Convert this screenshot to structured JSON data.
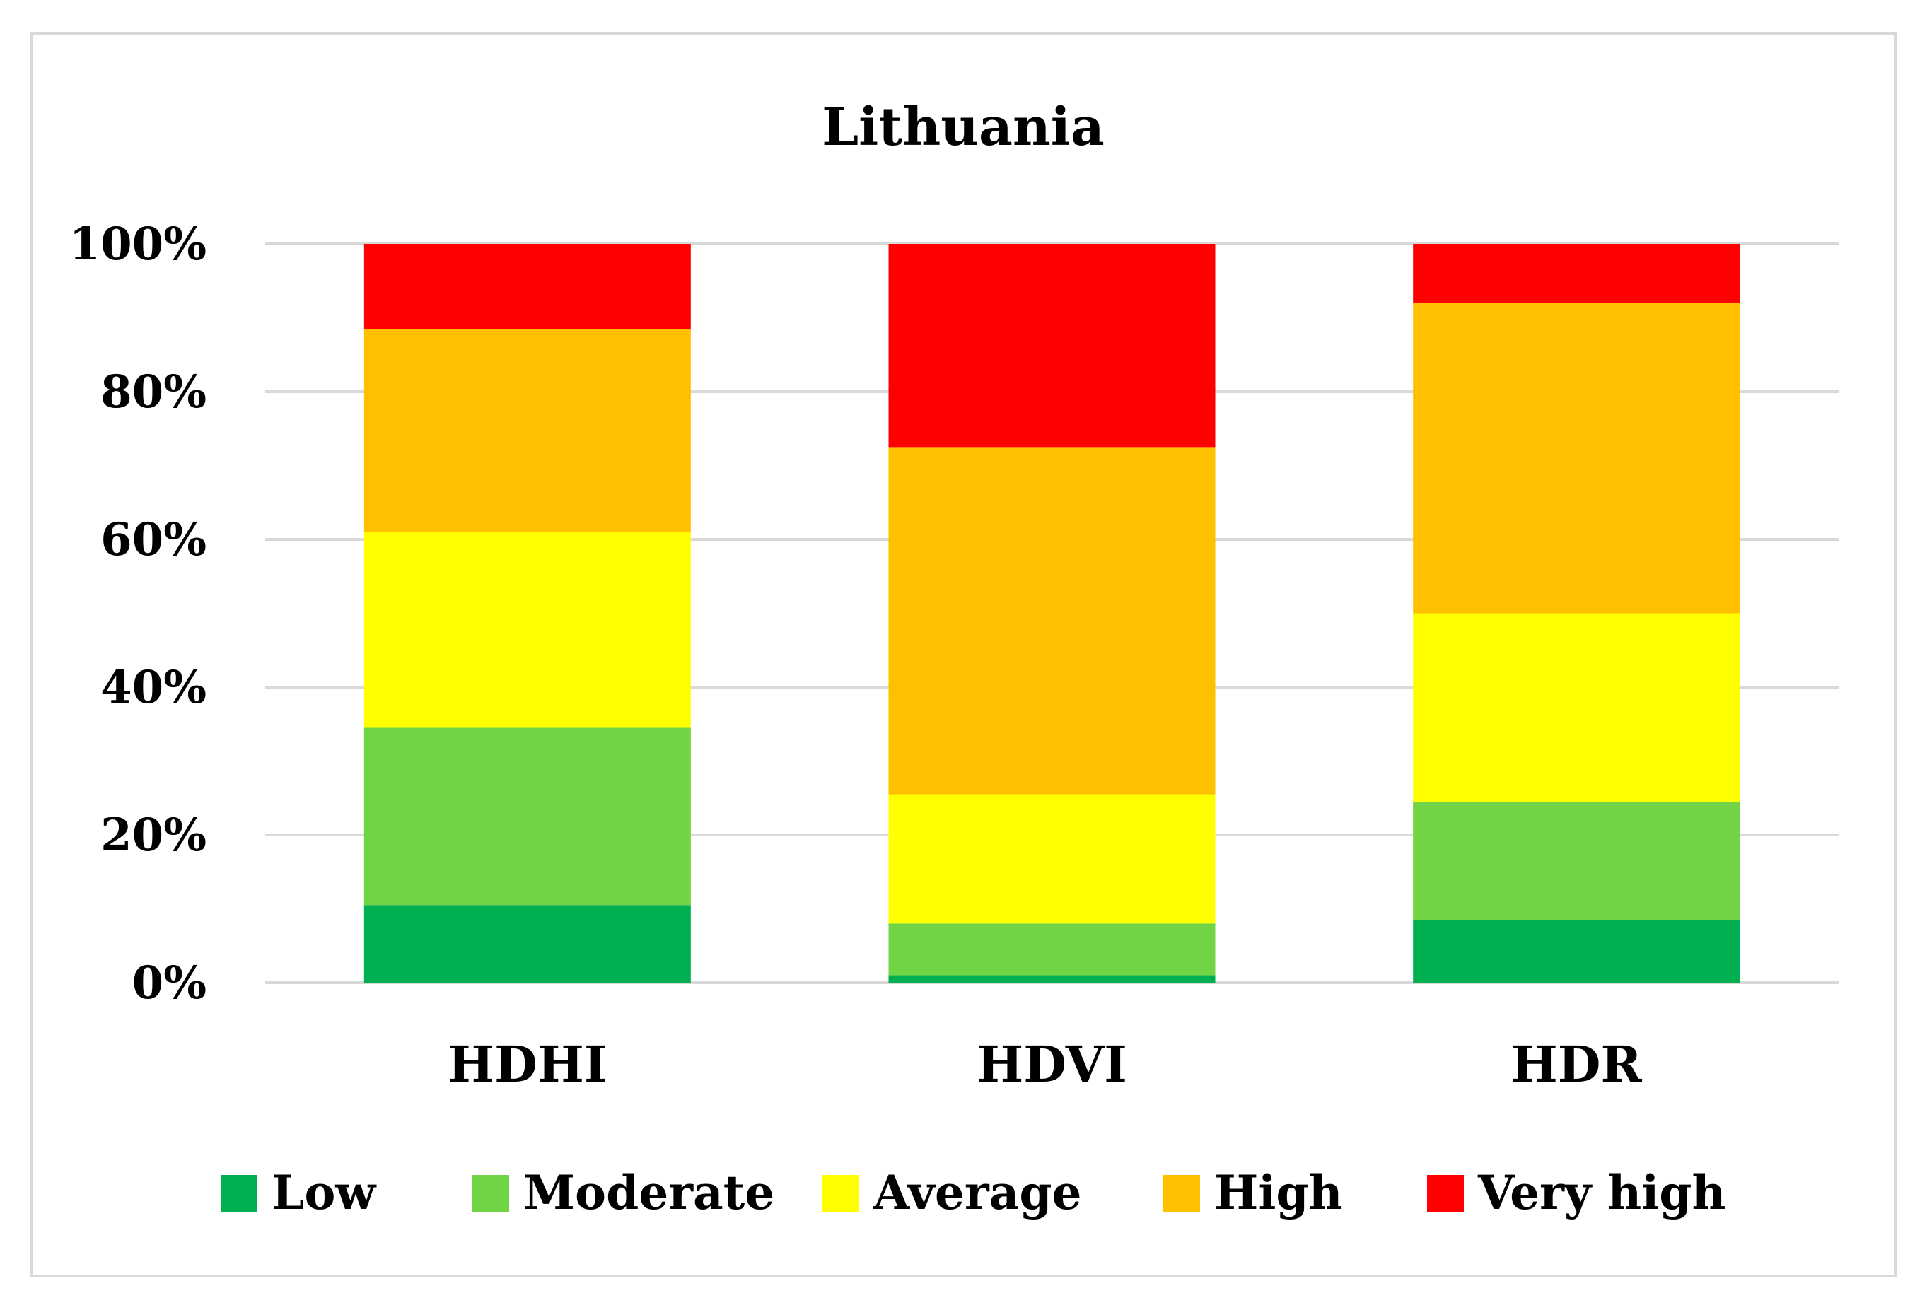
{
  "chart_data": {
    "type": "bar",
    "stacked": true,
    "title": "Lithuania",
    "xlabel": "",
    "ylabel": "",
    "ylim": [
      0,
      100
    ],
    "yticks": [
      "0%",
      "20%",
      "40%",
      "60%",
      "80%",
      "100%"
    ],
    "ytick_values": [
      0,
      20,
      40,
      60,
      80,
      100
    ],
    "categories": [
      "HDHI",
      "HDVI",
      "HDR"
    ],
    "series": [
      {
        "name": "Low",
        "color": "#00b050",
        "values": [
          10.5,
          1,
          8.5
        ]
      },
      {
        "name": "Moderate",
        "color": "#70d444",
        "values": [
          24,
          7,
          16
        ]
      },
      {
        "name": "Average",
        "color": "#ffff00",
        "values": [
          26.5,
          17.5,
          25.5
        ]
      },
      {
        "name": "High",
        "color": "#ffc000",
        "values": [
          27.5,
          47,
          42
        ]
      },
      {
        "name": "Very high",
        "color": "#ff0000",
        "values": [
          11.5,
          27.5,
          8
        ]
      }
    ],
    "legend_position": "bottom",
    "grid": true
  }
}
